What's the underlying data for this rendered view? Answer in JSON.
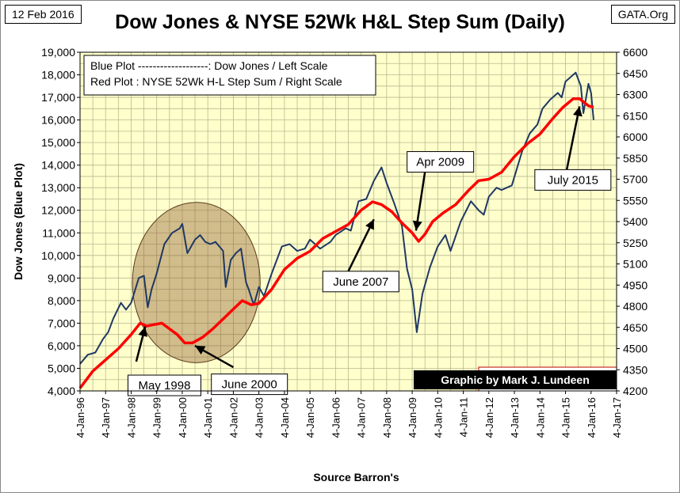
{
  "header": {
    "date_tag": "12 Feb 2016",
    "source_tag": "GATA.Org"
  },
  "credit": "Graphic by Mark J. Lundeen",
  "colors": {
    "plot_bg": "#FFFFCC",
    "grid": "#B8B890",
    "dow": "#1F3864",
    "nyse": "#FF0000",
    "ellipse_fill": "#8B5A2B",
    "credit_bg": "#000000",
    "credit_text": "#FFFFFF"
  },
  "annotations": [
    {
      "id": "may-1998",
      "text": "May 1998"
    },
    {
      "id": "june-2000",
      "text": "June 2000"
    },
    {
      "id": "june-2007",
      "text": "June 2007"
    },
    {
      "id": "apr-2009",
      "text": "Apr 2009"
    },
    {
      "id": "july-2015",
      "text": "July 2015"
    }
  ],
  "chart_data": {
    "type": "line",
    "title": "Dow Jones & NYSE 52Wk H&L Step Sum (Daily)",
    "xlabel": "Source Barron's",
    "ylabel_left": "Dow Jones",
    "ylabel_left_sub": "(Blue Plot)",
    "ylim_left": [
      4000,
      19000
    ],
    "ylim_right": [
      4200,
      6600
    ],
    "xlim": [
      1996.0,
      2017.0
    ],
    "grid": true,
    "legend": {
      "position": "top-left",
      "lines": [
        "Blue Plot -------------------:  Dow Jones / Left Scale",
        "Red Plot : NYSE 52Wk H-L Step Sum / Right Scale"
      ]
    },
    "left_ticks": [
      "4,000",
      "5,000",
      "6,000",
      "7,000",
      "8,000",
      "9,000",
      "10,000",
      "11,000",
      "12,000",
      "13,000",
      "14,000",
      "15,000",
      "16,000",
      "17,000",
      "18,000",
      "19,000"
    ],
    "left_tick_values": [
      4000,
      5000,
      6000,
      7000,
      8000,
      9000,
      10000,
      11000,
      12000,
      13000,
      14000,
      15000,
      16000,
      17000,
      18000,
      19000
    ],
    "right_ticks": [
      "4200",
      "4350",
      "4500",
      "4650",
      "4800",
      "4950",
      "5100",
      "5250",
      "5400",
      "5550",
      "5700",
      "5850",
      "6000",
      "6150",
      "6300",
      "6450",
      "6600"
    ],
    "right_tick_values": [
      4200,
      4350,
      4500,
      4650,
      4800,
      4950,
      5100,
      5250,
      5400,
      5550,
      5700,
      5850,
      6000,
      6150,
      6300,
      6450,
      6600
    ],
    "x_ticks": [
      "4-Jan-96",
      "4-Jan-97",
      "4-Jan-98",
      "4-Jan-99",
      "4-Jan-00",
      "4-Jan-01",
      "4-Jan-02",
      "4-Jan-03",
      "4-Jan-04",
      "4-Jan-05",
      "4-Jan-06",
      "4-Jan-07",
      "4-Jan-08",
      "4-Jan-09",
      "4-Jan-10",
      "4-Jan-11",
      "4-Jan-12",
      "4-Jan-13",
      "4-Jan-14",
      "4-Jan-15",
      "4-Jan-16",
      "4-Jan-17"
    ],
    "series": [
      {
        "name": "Dow Jones",
        "axis": "left",
        "x": [
          1996.0,
          1996.3,
          1996.6,
          1996.9,
          1997.1,
          1997.3,
          1997.6,
          1997.8,
          1998.0,
          1998.3,
          1998.5,
          1998.65,
          1998.8,
          1999.0,
          1999.3,
          1999.6,
          1999.9,
          2000.0,
          2000.2,
          2000.5,
          2000.7,
          2000.9,
          2001.1,
          2001.3,
          2001.6,
          2001.7,
          2001.9,
          2002.1,
          2002.3,
          2002.5,
          2002.6,
          2002.8,
          2003.0,
          2003.2,
          2003.5,
          2003.9,
          2004.2,
          2004.5,
          2004.8,
          2005.0,
          2005.4,
          2005.8,
          2006.0,
          2006.4,
          2006.6,
          2006.9,
          2007.2,
          2007.5,
          2007.8,
          2008.0,
          2008.3,
          2008.6,
          2008.8,
          2009.0,
          2009.18,
          2009.4,
          2009.7,
          2010.0,
          2010.3,
          2010.5,
          2010.9,
          2011.3,
          2011.6,
          2011.8,
          2012.0,
          2012.3,
          2012.5,
          2012.9,
          2013.3,
          2013.6,
          2013.9,
          2014.1,
          2014.4,
          2014.7,
          2014.85,
          2015.0,
          2015.4,
          2015.6,
          2015.7,
          2015.9,
          2016.0,
          2016.1
        ],
        "values": [
          5200,
          5600,
          5700,
          6300,
          6600,
          7200,
          7900,
          7600,
          7900,
          9000,
          9100,
          7700,
          8500,
          9200,
          10500,
          11000,
          11200,
          11400,
          10100,
          10700,
          10900,
          10600,
          10500,
          10600,
          10200,
          8600,
          9800,
          10100,
          10300,
          8800,
          8500,
          7800,
          8600,
          8200,
          9200,
          10400,
          10500,
          10200,
          10300,
          10700,
          10300,
          10600,
          10900,
          11200,
          11100,
          12400,
          12500,
          13300,
          13900,
          13200,
          12300,
          11300,
          9400,
          8500,
          6600,
          8300,
          9500,
          10400,
          10900,
          10200,
          11500,
          12400,
          12000,
          11800,
          12600,
          13000,
          12900,
          13100,
          14600,
          15400,
          15800,
          16500,
          16900,
          17200,
          17000,
          17700,
          18100,
          17500,
          16300,
          17600,
          17200,
          16000
        ]
      },
      {
        "name": "NYSE 52Wk H-L Step Sum",
        "axis": "right",
        "x": [
          1996.0,
          1996.5,
          1997.0,
          1997.5,
          1998.0,
          1998.35,
          1998.6,
          1998.9,
          1999.2,
          1999.5,
          1999.8,
          2000.1,
          2000.4,
          2000.8,
          2001.2,
          2001.6,
          2002.0,
          2002.35,
          2002.7,
          2003.0,
          2003.5,
          2004.0,
          2004.5,
          2005.0,
          2005.5,
          2006.0,
          2006.5,
          2007.0,
          2007.45,
          2007.8,
          2008.2,
          2008.6,
          2009.0,
          2009.25,
          2009.5,
          2009.8,
          2010.2,
          2010.7,
          2011.2,
          2011.6,
          2012.0,
          2012.5,
          2013.0,
          2013.5,
          2014.0,
          2014.5,
          2014.9,
          2015.3,
          2015.55,
          2015.9,
          2016.1
        ],
        "values": [
          4220,
          4340,
          4420,
          4500,
          4600,
          4680,
          4660,
          4670,
          4680,
          4640,
          4600,
          4540,
          4540,
          4580,
          4640,
          4710,
          4780,
          4840,
          4810,
          4820,
          4920,
          5060,
          5140,
          5190,
          5280,
          5330,
          5380,
          5480,
          5540,
          5520,
          5470,
          5390,
          5320,
          5260,
          5310,
          5400,
          5460,
          5520,
          5620,
          5690,
          5700,
          5750,
          5860,
          5950,
          6020,
          6130,
          6210,
          6270,
          6270,
          6220,
          6210
        ]
      }
    ]
  }
}
